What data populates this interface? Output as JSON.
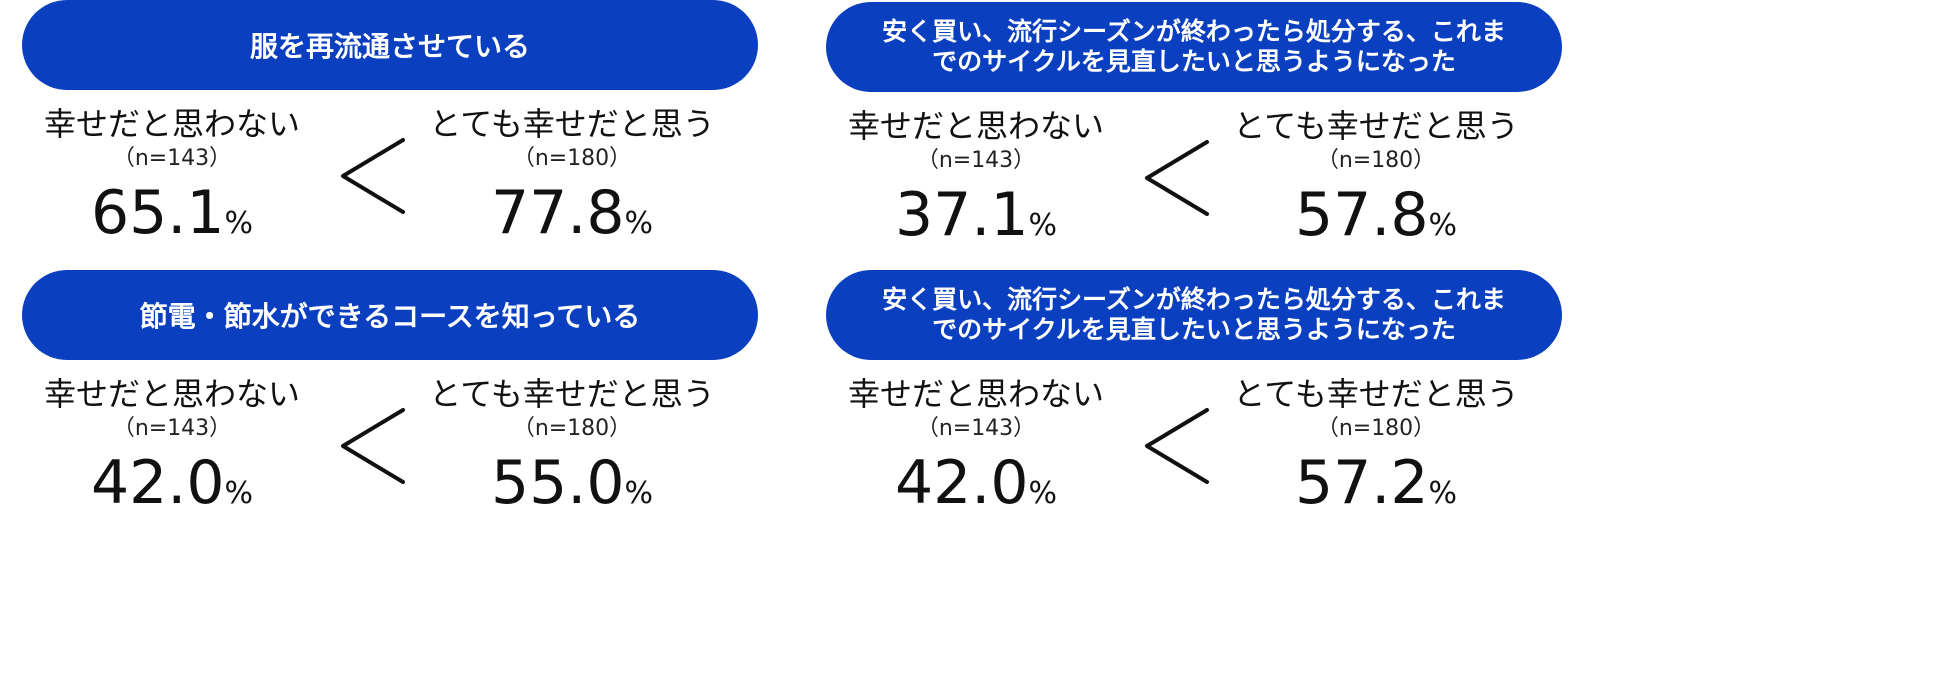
{
  "panels": [
    {
      "title_lines": [
        "服を再流通させている"
      ],
      "left": {
        "label": "幸せだと思わない",
        "n": "（n=143）",
        "value": "65.1",
        "unit": "%"
      },
      "comparator": "<",
      "right": {
        "label": "とても幸せだと思う",
        "n": "（n=180）",
        "value": "77.8",
        "unit": "%"
      }
    },
    {
      "title_lines": [
        "安く買い、流行シーズンが終わったら処分する、これま",
        "でのサイクルを見直したいと思うようになった"
      ],
      "left": {
        "label": "幸せだと思わない",
        "n": "（n=143）",
        "value": "37.1",
        "unit": "%"
      },
      "comparator": "<",
      "right": {
        "label": "とても幸せだと思う",
        "n": "（n=180）",
        "value": "57.8",
        "unit": "%"
      }
    },
    {
      "title_lines": [
        "節電・節水ができるコースを知っている"
      ],
      "left": {
        "label": "幸せだと思わない",
        "n": "（n=143）",
        "value": "42.0",
        "unit": "%"
      },
      "comparator": "<",
      "right": {
        "label": "とても幸せだと思う",
        "n": "（n=180）",
        "value": "55.0",
        "unit": "%"
      }
    },
    {
      "title_lines": [
        "安く買い、流行シーズンが終わったら処分する、これま",
        "でのサイクルを見直したいと思うようになった"
      ],
      "left": {
        "label": "幸せだと思わない",
        "n": "（n=143）",
        "value": "42.0",
        "unit": "%"
      },
      "comparator": "<",
      "right": {
        "label": "とても幸せだと思う",
        "n": "（n=180）",
        "value": "57.2",
        "unit": "%"
      }
    }
  ],
  "colors": {
    "banner": "#0a3fc0",
    "banner_text": "#ffffff",
    "text": "#111111"
  }
}
